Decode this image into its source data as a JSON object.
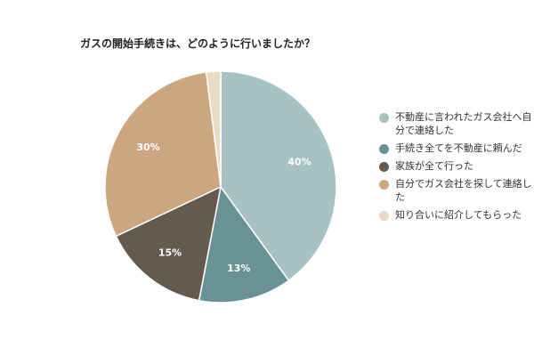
{
  "chart_data": {
    "type": "pie",
    "title": "ガスの開始手続きは、どのように行いましたか？",
    "slices": [
      {
        "label": "不動産に言われたガス会社へ自分で連絡した",
        "value": 40,
        "display": "40%",
        "color": "#a8c1c2"
      },
      {
        "label": "手続き全てを不動産に頼んだ",
        "value": 13,
        "display": "13%",
        "color": "#6a9195"
      },
      {
        "label": "家族が全て行った",
        "value": 15,
        "display": "15%",
        "color": "#655a50"
      },
      {
        "label": "自分でガス会社を探して連絡した",
        "value": 30,
        "display": "30%",
        "color": "#cca680"
      },
      {
        "label": "知り合いに紹介してもらった",
        "value": 2,
        "display": "",
        "color": "#eadbc5"
      }
    ],
    "start_angle": "12 o'clock",
    "direction": "clockwise",
    "legend_position": "right"
  }
}
